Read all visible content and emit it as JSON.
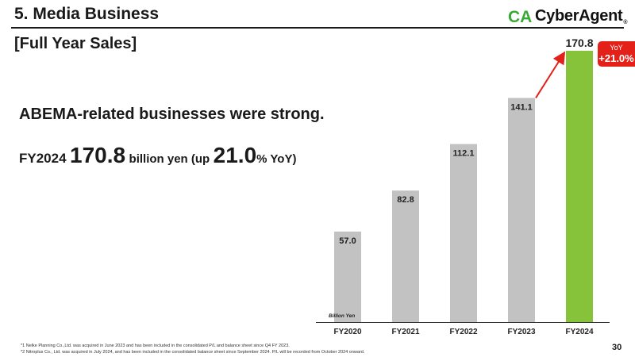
{
  "header": {
    "title": "5. Media Business",
    "logo_text": "CyberAgent",
    "logo_mark": "CA",
    "logo_registered": "®"
  },
  "section_title": "[Full Year Sales]",
  "headline": "ABEMA-related businesses were strong.",
  "summary": {
    "prefix": "FY2024",
    "value": "170.8",
    "unit_text": "billion yen (up",
    "growth": "21.0",
    "growth_suffix": "% YoY)"
  },
  "yoy_badge": {
    "label": "YoY",
    "value": "+21.0%"
  },
  "colors": {
    "bar_default": "#c2c2c2",
    "bar_highlight": "#86c33a",
    "accent_red": "#e32119"
  },
  "chart_data": {
    "type": "bar",
    "categories": [
      "FY2020",
      "FY2021",
      "FY2022",
      "FY2023",
      "FY2024"
    ],
    "values": [
      57.0,
      82.8,
      112.1,
      141.1,
      170.8
    ],
    "value_labels": [
      "57.0",
      "82.8",
      "112.1",
      "141.1",
      "170.8"
    ],
    "unit_label": "Billion Yen",
    "highlight_index": 4,
    "ylim": [
      0,
      170.8
    ],
    "grid": false,
    "annotation": {
      "type": "arrow",
      "from": "FY2023",
      "to": "FY2024",
      "label": "YoY +21.0%"
    }
  },
  "footnotes": [
    "*1   Nelke Planning Co.,Ltd. was acquired in June 2023 and has been included in the consolidated P/L and balance sheet since Q4 FY 2023.",
    "*2   Nitroplus Co., Ltd. was acquired in July 2024, and has been included in the consolidated balance sheet since September 2024. P/L will be recorded from October 2024 onward."
  ],
  "page_number": "30"
}
